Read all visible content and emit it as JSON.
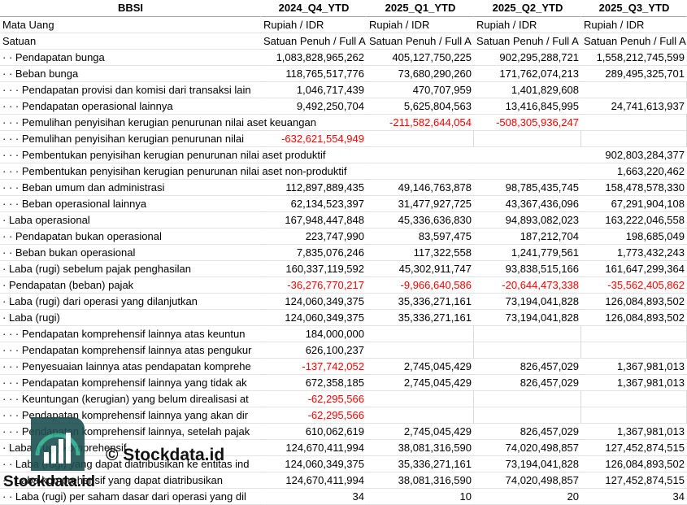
{
  "table": {
    "header": [
      "BBSI",
      "2024_Q4_YTD",
      "2025_Q1_YTD",
      "2025_Q2_YTD",
      "2025_Q3_YTD"
    ],
    "rows": [
      [
        "Mata Uang",
        "Rupiah / IDR",
        "Rupiah / IDR",
        "Rupiah / IDR",
        "Rupiah / IDR"
      ],
      [
        "Satuan",
        "Satuan Penuh / Full A",
        "Satuan Penuh / Full A",
        "Satuan Penuh / Full A",
        "Satuan Penuh / Full A"
      ],
      [
        "· · Pendapatan bunga",
        "1,083,828,965,262",
        "405,127,750,225",
        "902,295,288,721",
        "1,558,212,745,599"
      ],
      [
        "· · Beban bunga",
        "118,765,517,776",
        "73,680,290,260",
        "171,762,074,213",
        "289,495,325,701"
      ],
      [
        "· · · Pendapatan provisi dan komisi dari transaksi lain",
        "1,046,717,439",
        "470,707,959",
        "1,401,829,608",
        null
      ],
      [
        "· · · Pendapatan operasional lainnya",
        "9,492,250,704",
        "5,625,804,563",
        "13,416,845,995",
        "24,741,613,937"
      ],
      [
        "· · · Pemulihan penyisihan kerugian penurunan nilai aset keuangan",
        null,
        "-211,582,644,054",
        "-508,305,936,247",
        null
      ],
      [
        "· · · Pemulihan penyisihan kerugian penurunan nilai",
        "-632,621,554,949",
        null,
        null,
        null
      ],
      [
        "· · · Pembentukan penyisihan kerugian penurunan nilai aset produktif",
        null,
        null,
        null,
        "902,803,284,377"
      ],
      [
        "· · · Pembentukan penyisihan kerugian penurunan nilai aset non-produktif",
        null,
        null,
        null,
        "1,663,220,462"
      ],
      [
        "· · · Beban umum dan administrasi",
        "112,897,889,435",
        "49,146,763,878",
        "98,785,435,745",
        "158,478,578,330"
      ],
      [
        "· · · Beban operasional lainnya",
        "62,134,523,397",
        "31,477,927,725",
        "43,367,436,096",
        "67,291,904,108"
      ],
      [
        "· Laba operasional",
        "167,948,447,848",
        "45,336,636,830",
        "94,893,082,023",
        "163,222,046,558"
      ],
      [
        "· · Pendapatan bukan operasional",
        "223,747,990",
        "83,597,475",
        "187,212,704",
        "198,685,049"
      ],
      [
        "· · Beban bukan operasional",
        "7,835,076,246",
        "117,322,558",
        "1,241,779,561",
        "1,773,432,243"
      ],
      [
        "· Laba (rugi) sebelum pajak penghasilan",
        "160,337,119,592",
        "45,302,911,747",
        "93,838,515,166",
        "161,647,299,364"
      ],
      [
        "· Pendapatan (beban) pajak",
        "-36,276,770,217",
        "-9,966,640,586",
        "-20,644,473,338",
        "-35,562,405,862"
      ],
      [
        "· Laba (rugi) dari operasi yang dilanjutkan",
        "124,060,349,375",
        "35,336,271,161",
        "73,194,041,828",
        "126,084,893,502"
      ],
      [
        "· Laba (rugi)",
        "124,060,349,375",
        "35,336,271,161",
        "73,194,041,828",
        "126,084,893,502"
      ],
      [
        "· · · Pendapatan komprehensif lainnya atas keuntun",
        "184,000,000",
        null,
        null,
        null
      ],
      [
        "· · · Pendapatan komprehensif lainnya atas pengukur",
        "626,100,237",
        null,
        null,
        null
      ],
      [
        "· · · Penyesuaian lainnya atas pendapatan komprehe",
        "-137,742,052",
        "2,745,045,429",
        "826,457,029",
        "1,367,981,013"
      ],
      [
        "· · · Pendapatan komprehensif lainnya yang tidak ak",
        "672,358,185",
        "2,745,045,429",
        "826,457,029",
        "1,367,981,013"
      ],
      [
        "· · · Keuntungan (kerugian) yang belum direalisasi at",
        "-62,295,566",
        null,
        null,
        null
      ],
      [
        "· · · Pendapatan komprehensif lainnya yang akan dir",
        "-62,295,566",
        null,
        null,
        null
      ],
      [
        "· · · Pendapatan komprehensif lainnya, setelah pajak",
        "610,062,619",
        "2,745,045,429",
        "826,457,029",
        "1,367,981,013"
      ],
      [
        "· Laba (rugi) komprehensif",
        "124,670,411,994",
        "38,081,316,590",
        "74,020,498,857",
        "127,452,874,515"
      ],
      [
        "· · Laba (rugi) yang dapat diatribusikan ke entitas ind",
        "124,060,349,375",
        "35,336,271,161",
        "73,194,041,828",
        "126,084,893,502"
      ],
      [
        "· · Laba komprehensif yang dapat diatribusikan",
        "124,670,411,994",
        "38,081,316,590",
        "74,020,498,857",
        "127,452,874,515"
      ],
      [
        "· · Laba (rugi) per saham dasar dari operasi yang dil",
        "34",
        "10",
        "20",
        "34"
      ]
    ]
  },
  "watermark": {
    "caption": "© Stockdata.id",
    "brand": "Stockdata.id"
  }
}
